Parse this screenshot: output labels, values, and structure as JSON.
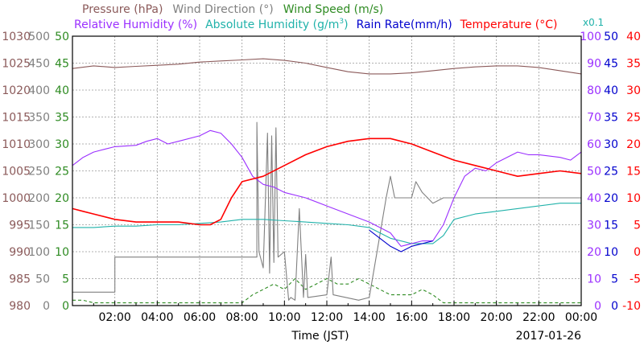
{
  "chart_data": {
    "type": "line",
    "legend": {
      "row1": [
        {
          "label": "Pressure (hPa)",
          "color": "#8b5a5a"
        },
        {
          "label": "Wind Direction (°)",
          "color": "#808080"
        },
        {
          "label": "Wind Speed (m/s)",
          "color": "#2e8b22"
        }
      ],
      "row2": [
        {
          "label": "Relative Humidity (%)",
          "color": "#9b30ff"
        },
        {
          "label": "Absolute Humidity (g/m",
          "sup": "3",
          "close": ")",
          "color": "#20b2aa"
        },
        {
          "label": "Rain Rate(mm/h)",
          "color": "#0000cd"
        },
        {
          "label": "Temperature (°C)",
          "color": "#ff0000"
        }
      ],
      "multiplier": "x0.1"
    },
    "xlabel": "Time (JST)",
    "date": "2017-01-26",
    "x_ticks": [
      "02:00",
      "04:00",
      "06:00",
      "08:00",
      "10:00",
      "12:00",
      "14:00",
      "16:00",
      "18:00",
      "20:00",
      "22:00",
      "00:00"
    ],
    "x_range_hours": [
      0,
      24
    ],
    "grid": true,
    "axes": {
      "pressure": {
        "ticks": [
          "1030",
          "1025",
          "1020",
          "1015",
          "1010",
          "1005",
          "1000",
          "995",
          "990",
          "985",
          "980"
        ],
        "range": [
          980,
          1030
        ],
        "color": "#8b5a5a"
      },
      "wind_direction": {
        "ticks": [
          "500",
          "450",
          "400",
          "350",
          "300",
          "250",
          "200",
          "150",
          "100",
          "50",
          "0"
        ],
        "range": [
          0,
          500
        ],
        "color": "#808080"
      },
      "wind_speed": {
        "ticks": [
          "50",
          "45",
          "40",
          "35",
          "30",
          "25",
          "20",
          "15",
          "10",
          "5",
          "0"
        ],
        "range": [
          0,
          50
        ],
        "color": "#2e8b22"
      },
      "humidity": {
        "ticks": [
          "100",
          "90",
          "80",
          "70",
          "60",
          "50",
          "40",
          "30",
          "20",
          "10",
          "0"
        ],
        "range": [
          0,
          100
        ],
        "color": "#9b30ff"
      },
      "rain_rate": {
        "ticks": [
          "50",
          "45",
          "40",
          "35",
          "30",
          "25",
          "20",
          "15",
          "10",
          "5",
          "0"
        ],
        "range": [
          0,
          50
        ],
        "color": "#0000cd"
      },
      "temperature": {
        "ticks": [
          "40",
          "35",
          "30",
          "25",
          "20",
          "15",
          "10",
          "5",
          "0",
          "-5",
          "-10"
        ],
        "range": [
          -10,
          40
        ],
        "color": "#ff0000"
      }
    },
    "series": [
      {
        "name": "Pressure (hPa)",
        "axis": "pressure",
        "color": "#8b5a5a",
        "points": [
          [
            0,
            1024
          ],
          [
            1,
            1024.5
          ],
          [
            2,
            1024.2
          ],
          [
            3,
            1024.4
          ],
          [
            4,
            1024.6
          ],
          [
            5,
            1024.8
          ],
          [
            6,
            1025.2
          ],
          [
            7,
            1025.4
          ],
          [
            8,
            1025.6
          ],
          [
            9,
            1025.8
          ],
          [
            10,
            1025.5
          ],
          [
            11,
            1025
          ],
          [
            12,
            1024.2
          ],
          [
            13,
            1023.4
          ],
          [
            14,
            1023
          ],
          [
            15,
            1023
          ],
          [
            16,
            1023.2
          ],
          [
            17,
            1023.6
          ],
          [
            18,
            1024
          ],
          [
            19,
            1024.3
          ],
          [
            20,
            1024.5
          ],
          [
            21,
            1024.5
          ],
          [
            22,
            1024.2
          ],
          [
            23,
            1023.6
          ],
          [
            24,
            1023
          ]
        ]
      },
      {
        "name": "Relative Humidity (%)",
        "axis": "humidity",
        "color": "#9b30ff",
        "points": [
          [
            0,
            52
          ],
          [
            0.5,
            55
          ],
          [
            1,
            57
          ],
          [
            1.5,
            58
          ],
          [
            2,
            59
          ],
          [
            3,
            59.5
          ],
          [
            3.5,
            61
          ],
          [
            4,
            62
          ],
          [
            4.5,
            60
          ],
          [
            5,
            61
          ],
          [
            6,
            63
          ],
          [
            6.5,
            65
          ],
          [
            7,
            64
          ],
          [
            7.5,
            60
          ],
          [
            8,
            55
          ],
          [
            8.5,
            48
          ],
          [
            9,
            45
          ],
          [
            9.5,
            44
          ],
          [
            10,
            42
          ],
          [
            11,
            40
          ],
          [
            12,
            37
          ],
          [
            13,
            34
          ],
          [
            14,
            31
          ],
          [
            15,
            27
          ],
          [
            15.5,
            22
          ],
          [
            16,
            23
          ],
          [
            16.5,
            24
          ],
          [
            17,
            24
          ],
          [
            17.5,
            30
          ],
          [
            18,
            40
          ],
          [
            18.5,
            48
          ],
          [
            19,
            51
          ],
          [
            19.5,
            50
          ],
          [
            20,
            53
          ],
          [
            20.5,
            55
          ],
          [
            21,
            57
          ],
          [
            21.5,
            56
          ],
          [
            22,
            56
          ],
          [
            23,
            55
          ],
          [
            23.5,
            54
          ],
          [
            24,
            57
          ]
        ]
      },
      {
        "name": "Absolute Humidity",
        "axis": "humidity",
        "color": "#20b2aa",
        "points": [
          [
            0,
            29
          ],
          [
            1,
            29
          ],
          [
            2,
            29.5
          ],
          [
            3,
            29.5
          ],
          [
            4,
            30
          ],
          [
            5,
            30
          ],
          [
            6,
            30.5
          ],
          [
            7,
            31
          ],
          [
            8,
            32
          ],
          [
            9,
            32
          ],
          [
            10,
            31.5
          ],
          [
            11,
            31
          ],
          [
            12,
            30.5
          ],
          [
            13,
            30
          ],
          [
            14,
            29
          ],
          [
            15,
            25
          ],
          [
            16,
            23
          ],
          [
            17,
            23
          ],
          [
            17.5,
            26
          ],
          [
            18,
            32
          ],
          [
            19,
            34
          ],
          [
            20,
            35
          ],
          [
            21,
            36
          ],
          [
            22,
            37
          ],
          [
            23,
            38
          ],
          [
            24,
            38
          ]
        ]
      },
      {
        "name": "Rain Rate(mm/h)",
        "axis": "rain_rate",
        "color": "#0000cd",
        "points": [
          [
            14,
            14
          ],
          [
            15,
            11
          ],
          [
            15.5,
            10
          ],
          [
            16,
            11
          ],
          [
            17,
            12
          ]
        ]
      },
      {
        "name": "Temperature (°C)",
        "axis": "temperature",
        "color": "#ff0000",
        "points": [
          [
            0,
            8
          ],
          [
            0.5,
            7.5
          ],
          [
            1,
            7
          ],
          [
            2,
            6
          ],
          [
            3,
            5.5
          ],
          [
            4,
            5.5
          ],
          [
            5,
            5.5
          ],
          [
            6,
            5
          ],
          [
            6.5,
            5
          ],
          [
            7,
            6
          ],
          [
            7.5,
            10
          ],
          [
            8,
            13
          ],
          [
            9,
            14
          ],
          [
            10,
            16
          ],
          [
            11,
            18
          ],
          [
            12,
            19.5
          ],
          [
            13,
            20.5
          ],
          [
            14,
            21
          ],
          [
            15,
            21
          ],
          [
            16,
            20
          ],
          [
            17,
            18.5
          ],
          [
            18,
            17
          ],
          [
            19,
            16
          ],
          [
            20,
            15
          ],
          [
            21,
            14
          ],
          [
            22,
            14.5
          ],
          [
            23,
            15
          ],
          [
            24,
            14.5
          ]
        ]
      },
      {
        "name": "Wind Direction (°)",
        "axis": "wind_direction",
        "color": "#808080",
        "points": [
          [
            0,
            25
          ],
          [
            2,
            25
          ],
          [
            2,
            90
          ],
          [
            8.7,
            90
          ],
          [
            8.7,
            340
          ],
          [
            8.8,
            100
          ],
          [
            9,
            70
          ],
          [
            9.2,
            320
          ],
          [
            9.3,
            60
          ],
          [
            9.4,
            315
          ],
          [
            9.5,
            80
          ],
          [
            9.6,
            330
          ],
          [
            9.7,
            90
          ],
          [
            10,
            100
          ],
          [
            10.2,
            10
          ],
          [
            10.3,
            15
          ],
          [
            10.5,
            10
          ],
          [
            10.7,
            180
          ],
          [
            10.9,
            15
          ],
          [
            11,
            95
          ],
          [
            11.1,
            15
          ],
          [
            12,
            20
          ],
          [
            12.2,
            90
          ],
          [
            12.3,
            20
          ],
          [
            13.5,
            10
          ],
          [
            14,
            15
          ],
          [
            14.5,
            130
          ],
          [
            14.8,
            200
          ],
          [
            15,
            240
          ],
          [
            15.2,
            200
          ],
          [
            16,
            200
          ],
          [
            16.2,
            230
          ],
          [
            16.5,
            210
          ],
          [
            17,
            190
          ],
          [
            17.5,
            200
          ],
          [
            18,
            200
          ],
          [
            24,
            200
          ]
        ]
      },
      {
        "name": "Wind Speed (m/s)",
        "axis": "wind_speed",
        "color": "#2e8b22",
        "dash": true,
        "points": [
          [
            0,
            1
          ],
          [
            0.5,
            1
          ],
          [
            1,
            0.5
          ],
          [
            8,
            0.5
          ],
          [
            8.5,
            2
          ],
          [
            9,
            3
          ],
          [
            9.5,
            4
          ],
          [
            10,
            3
          ],
          [
            10.5,
            5
          ],
          [
            11,
            3
          ],
          [
            11.5,
            4
          ],
          [
            12,
            5
          ],
          [
            12.5,
            4
          ],
          [
            13,
            4
          ],
          [
            13.5,
            5
          ],
          [
            14,
            4
          ],
          [
            14.5,
            3
          ],
          [
            15,
            2
          ],
          [
            16,
            2
          ],
          [
            16.5,
            3
          ],
          [
            17,
            2
          ],
          [
            17.5,
            0.5
          ],
          [
            24,
            0.5
          ]
        ]
      }
    ]
  }
}
